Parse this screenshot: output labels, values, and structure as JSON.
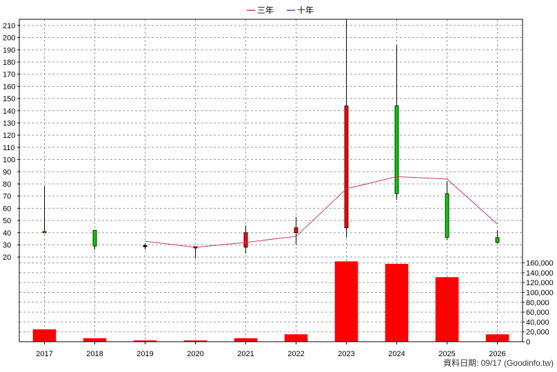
{
  "chart_data": {
    "type": "candlestick",
    "legend": {
      "position": "top-center",
      "items": [
        {
          "label": "三年",
          "color": "#cc3366"
        },
        {
          "label": "十年",
          "color": "#6633cc"
        }
      ]
    },
    "categories": [
      "2017",
      "2018",
      "2019",
      "2020",
      "2021",
      "2022",
      "2023",
      "2024",
      "2025",
      "2026"
    ],
    "price_axis": {
      "range": [
        15,
        215
      ],
      "ticks": [
        20,
        30,
        40,
        50,
        60,
        70,
        80,
        90,
        100,
        110,
        120,
        130,
        140,
        150,
        160,
        170,
        180,
        190,
        200,
        210
      ]
    },
    "volume_axis": {
      "range": [
        0,
        165000
      ],
      "ticks": [
        0,
        20000,
        40000,
        60000,
        80000,
        100000,
        120000,
        140000,
        160000
      ],
      "tick_labels": [
        "0",
        "20,000",
        "40,000",
        "60,000",
        "80,000",
        "100,000",
        "120,000",
        "140,000",
        "160,000"
      ]
    },
    "candles": [
      {
        "year": "2017",
        "open": 40,
        "close": 41,
        "high": 78,
        "low": 40
      },
      {
        "year": "2018",
        "open": 29,
        "close": 42,
        "high": 42,
        "low": 26
      },
      {
        "year": "2019",
        "open": 29,
        "close": 29,
        "high": 31,
        "low": 26
      },
      {
        "year": "2020",
        "open": 28,
        "close": 28,
        "high": 28,
        "low": 19
      },
      {
        "year": "2021",
        "open": 40,
        "close": 28,
        "high": 46,
        "low": 23
      },
      {
        "year": "2022",
        "open": 44,
        "close": 40,
        "high": 53,
        "low": 30
      },
      {
        "year": "2023",
        "open": 144,
        "close": 44,
        "high": 215,
        "low": 36
      },
      {
        "year": "2024",
        "open": 72,
        "close": 144,
        "high": 194,
        "low": 67
      },
      {
        "year": "2025",
        "open": 36,
        "close": 72,
        "high": 82,
        "low": 34
      },
      {
        "year": "2026",
        "open": 32,
        "close": 36,
        "high": 42,
        "low": 31
      }
    ],
    "series": [
      {
        "name": "三年",
        "color": "#cc3366",
        "values": [
          null,
          null,
          33,
          28,
          32,
          37,
          76,
          86,
          84,
          47
        ]
      },
      {
        "name": "十年",
        "color": "#6633cc",
        "values": [
          null,
          null,
          null,
          null,
          null,
          null,
          null,
          null,
          null,
          null
        ]
      }
    ],
    "volume": [
      25000,
      7000,
      2500,
      2500,
      7000,
      15000,
      163000,
      158000,
      131000,
      15000
    ],
    "colors": {
      "up": "#00cc00",
      "down": "#ff0000",
      "volume": "#ff0000",
      "grid": "#999999"
    },
    "grid": true,
    "source_note": "資料日期: 09/17  (Goodinfo.tw)"
  }
}
